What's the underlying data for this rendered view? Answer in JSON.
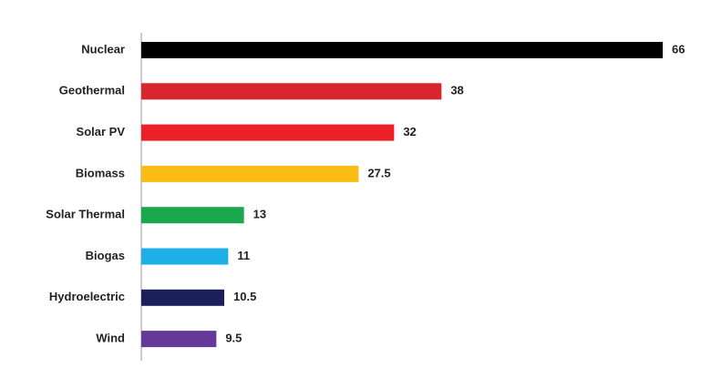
{
  "chart_data": {
    "type": "bar",
    "orientation": "horizontal",
    "categories": [
      "Nuclear",
      "Geothermal",
      "Solar PV",
      "Biomass",
      "Solar Thermal",
      "Biogas",
      "Hydroelectric",
      "Wind"
    ],
    "values": [
      66,
      38,
      32,
      27.5,
      13,
      11,
      10.5,
      9.5
    ],
    "colors": [
      "#000000",
      "#d8262e",
      "#ec2027",
      "#fbbd13",
      "#1aa84d",
      "#1cb0e6",
      "#1b1f5a",
      "#64399a"
    ]
  }
}
